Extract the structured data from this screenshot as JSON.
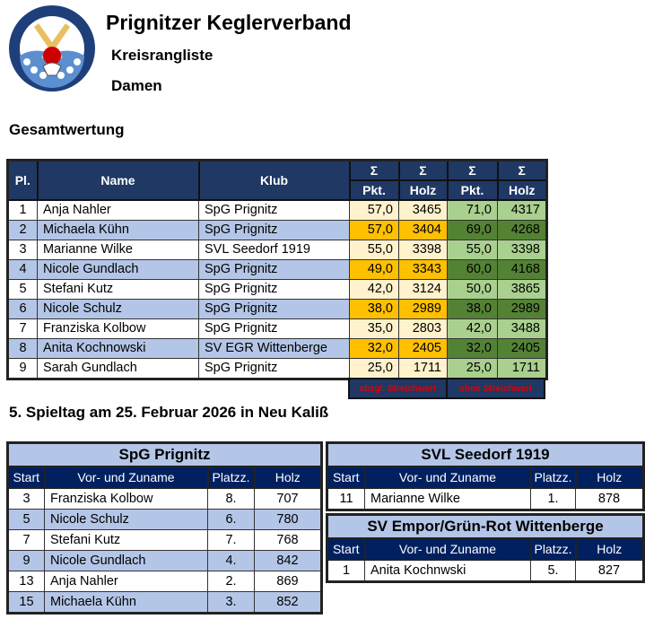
{
  "header": {
    "title": "Prignitzer Keglerverband",
    "subtitle": "Kreisrangliste",
    "category": "Damen",
    "logo_text": "PRIGNITZER KEGLERVERBAND"
  },
  "overall": {
    "heading": "Gesamtwertung",
    "columns": {
      "place": "Pl.",
      "name": "Name",
      "club": "Klub",
      "sigma": "Σ",
      "points": "Pkt.",
      "pins": "Holz"
    },
    "footer": {
      "left": "abzgl. Streichwert",
      "right": "ohne Streichwert"
    },
    "rows": [
      {
        "pl": "1",
        "name": "Anja Nahler",
        "club": "SpG Prignitz",
        "pkt1": "57,0",
        "holz1": "3465",
        "pkt2": "71,0",
        "holz2": "4317"
      },
      {
        "pl": "2",
        "name": "Michaela Kühn",
        "club": "SpG Prignitz",
        "pkt1": "57,0",
        "holz1": "3404",
        "pkt2": "69,0",
        "holz2": "4268"
      },
      {
        "pl": "3",
        "name": "Marianne Wilke",
        "club": "SVL Seedorf 1919",
        "pkt1": "55,0",
        "holz1": "3398",
        "pkt2": "55,0",
        "holz2": "3398"
      },
      {
        "pl": "4",
        "name": "Nicole Gundlach",
        "club": "SpG Prignitz",
        "pkt1": "49,0",
        "holz1": "3343",
        "pkt2": "60,0",
        "holz2": "4168"
      },
      {
        "pl": "5",
        "name": "Stefani Kutz",
        "club": "SpG Prignitz",
        "pkt1": "42,0",
        "holz1": "3124",
        "pkt2": "50,0",
        "holz2": "3865"
      },
      {
        "pl": "6",
        "name": "Nicole Schulz",
        "club": "SpG Prignitz",
        "pkt1": "38,0",
        "holz1": "2989",
        "pkt2": "38,0",
        "holz2": "2989"
      },
      {
        "pl": "7",
        "name": "Franziska Kolbow",
        "club": "SpG Prignitz",
        "pkt1": "35,0",
        "holz1": "2803",
        "pkt2": "42,0",
        "holz2": "3488"
      },
      {
        "pl": "8",
        "name": "Anita Kochnowski",
        "club": "SV EGR Wittenberge",
        "pkt1": "32,0",
        "holz1": "2405",
        "pkt2": "32,0",
        "holz2": "2405"
      },
      {
        "pl": "9",
        "name": "Sarah Gundlach",
        "club": "SpG Prignitz",
        "pkt1": "25,0",
        "holz1": "1711",
        "pkt2": "25,0",
        "holz2": "1711"
      }
    ]
  },
  "matchday": {
    "heading": "5. Spieltag am 25. Februar 2026 in Neu Kaliß",
    "columns": {
      "start": "Start",
      "name": "Vor- und Zuname",
      "place": "Platzz.",
      "pins": "Holz"
    },
    "teams": [
      {
        "name": "SpG Prignitz",
        "rows": [
          {
            "start": "3",
            "name": "Franziska Kolbow",
            "place": "8.",
            "pins": "707"
          },
          {
            "start": "5",
            "name": "Nicole Schulz",
            "place": "6.",
            "pins": "780"
          },
          {
            "start": "7",
            "name": "Stefani Kutz",
            "place": "7.",
            "pins": "768"
          },
          {
            "start": "9",
            "name": "Nicole Gundlach",
            "place": "4.",
            "pins": "842"
          },
          {
            "start": "13",
            "name": "Anja Nahler",
            "place": "2.",
            "pins": "869"
          },
          {
            "start": "15",
            "name": "Michaela Kühn",
            "place": "3.",
            "pins": "852"
          }
        ]
      },
      {
        "name": "SVL Seedorf 1919",
        "rows": [
          {
            "start": "11",
            "name": "Marianne Wilke",
            "place": "1.",
            "pins": "878"
          }
        ]
      },
      {
        "name": "SV Empor/Grün-Rot Wittenberge",
        "rows": [
          {
            "start": "1",
            "name": "Anita Kochnwski",
            "place": "5.",
            "pins": "827"
          }
        ]
      }
    ]
  },
  "colors": {
    "navy": "#1f3864",
    "light_blue": "#b4c6e7",
    "cream": "#fff2cc",
    "orange": "#ffc000",
    "light_green": "#a9d08e",
    "dark_green": "#548235",
    "footer_red": "#e00000"
  }
}
